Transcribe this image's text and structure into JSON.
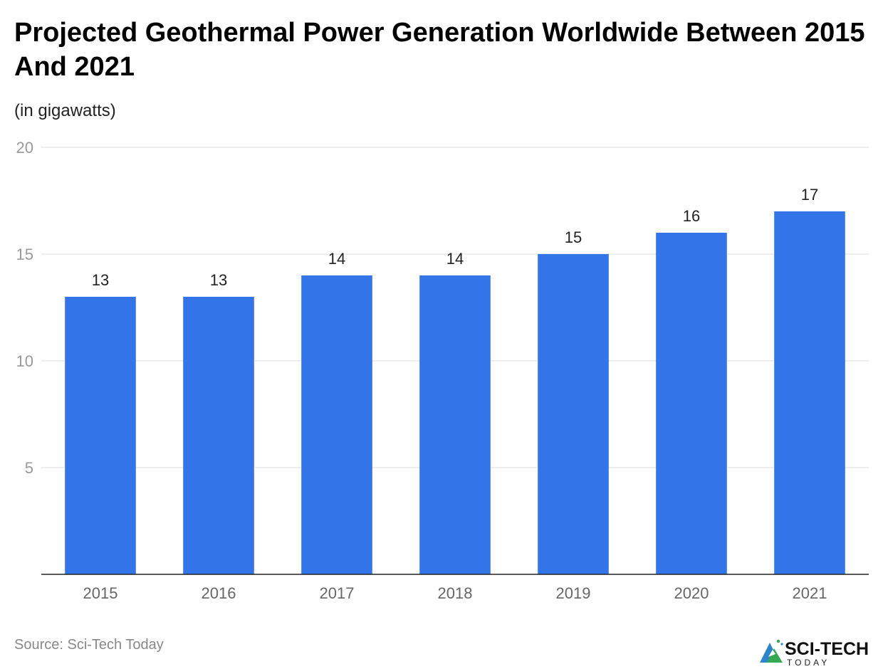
{
  "chart_data": {
    "type": "bar",
    "title": "Projected Geothermal Power Generation Worldwide Between 2015 And 2021",
    "subtitle": "(in gigawatts)",
    "categories": [
      "2015",
      "2016",
      "2017",
      "2018",
      "2019",
      "2020",
      "2021"
    ],
    "values": [
      13,
      13,
      14,
      14,
      15,
      16,
      17
    ],
    "data_labels": [
      "13",
      "13",
      "14",
      "14",
      "15",
      "16",
      "17"
    ],
    "ylim": [
      0,
      20
    ],
    "yticks": [
      5,
      10,
      15,
      20
    ],
    "ytick_labels": [
      "5",
      "10",
      "15",
      "20"
    ],
    "grid": true,
    "legend": "none",
    "bar_color": "#3375e8"
  },
  "source": "Source: Sci-Tech Today",
  "logo": {
    "text_main": "SCI-TECH",
    "text_sub": "TODAY",
    "icon": "mountain-arrow-logo-icon"
  }
}
